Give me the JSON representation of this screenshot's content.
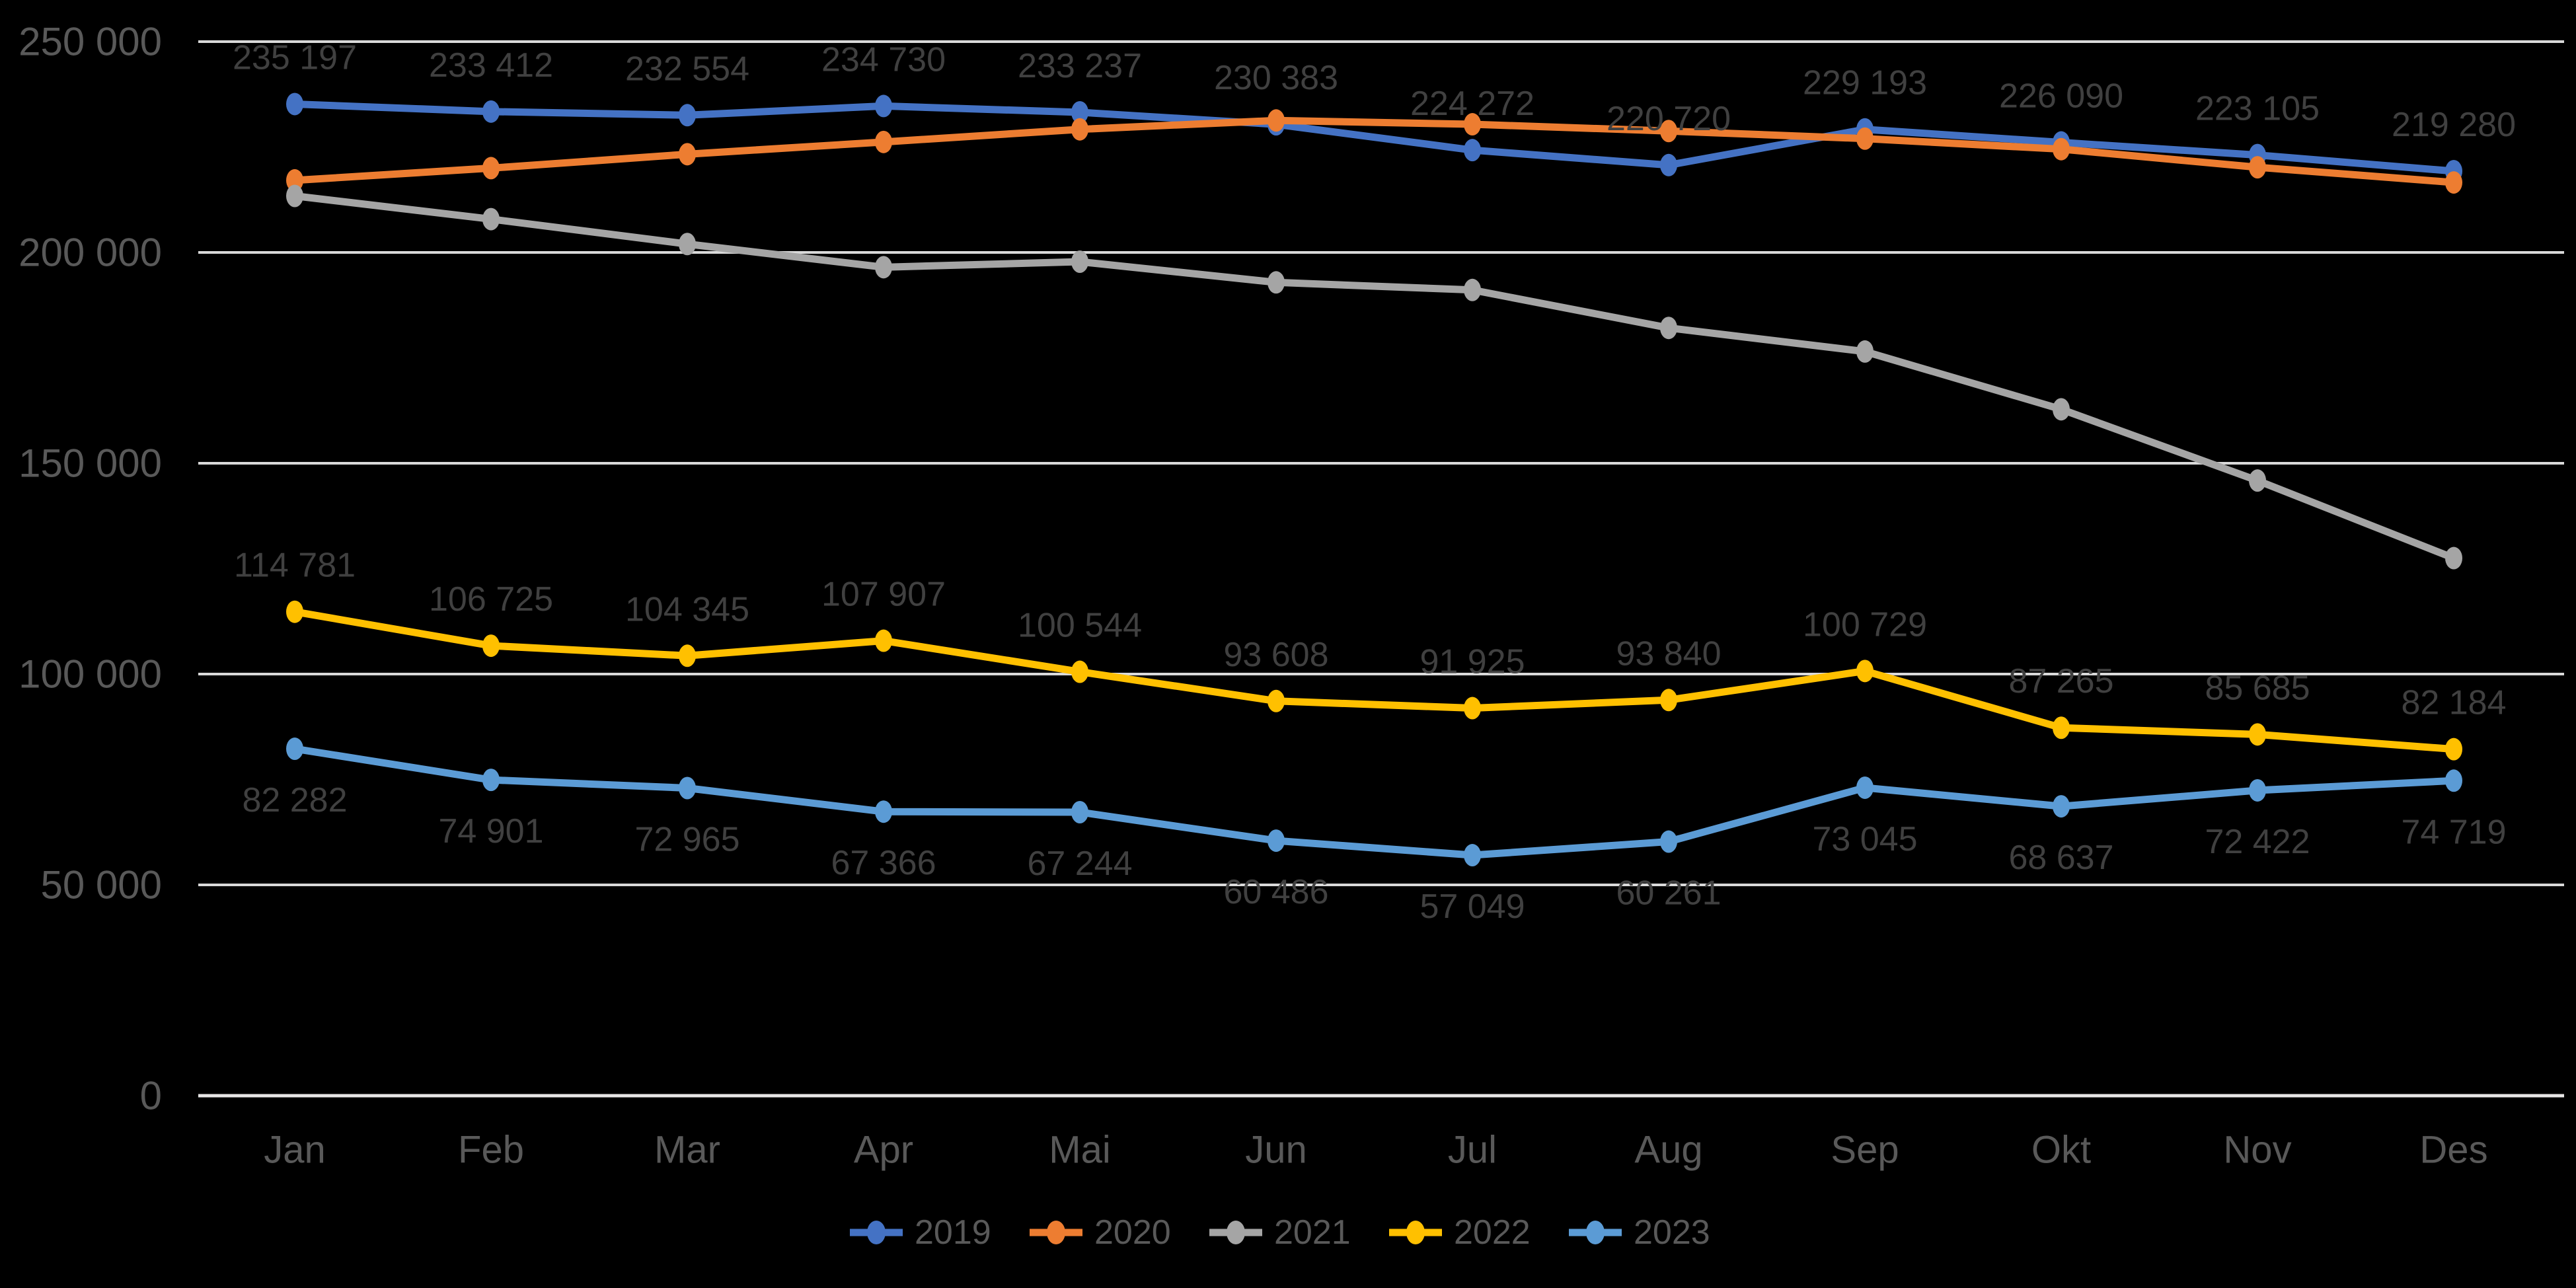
{
  "style": {
    "background_color": "#000000",
    "gridline_color": "#D9D9D9",
    "axisline_color": "#E7E6E6",
    "axis_label_color": "#595959",
    "data_label_color": "#404040",
    "legend_text_color": "#595959"
  },
  "chart_data": {
    "type": "line",
    "title": "",
    "xlabel": "",
    "ylabel": "",
    "grid": true,
    "legend_position": "bottom",
    "categories": [
      "Jan",
      "Feb",
      "Mar",
      "Apr",
      "Mai",
      "Jun",
      "Jul",
      "Aug",
      "Sep",
      "Okt",
      "Nov",
      "Des"
    ],
    "y_axis": {
      "min": 0,
      "max": 250000,
      "step": 50000,
      "tick_labels": [
        "0",
        "50 000",
        "100 000",
        "150 000",
        "200 000",
        "250 000"
      ]
    },
    "series": [
      {
        "name": "2019",
        "color": "#4472C4",
        "values": [
          235197,
          233412,
          232554,
          234730,
          233237,
          230383,
          224272,
          220720,
          229193,
          226090,
          223105,
          219280
        ],
        "labels": [
          "235 197",
          "233 412",
          "232 554",
          "234 730",
          "233 237",
          "230 383",
          "224 272",
          "220 720",
          "229 193",
          "226 090",
          "223 105",
          "219 280"
        ],
        "label_position": "above"
      },
      {
        "name": "2020",
        "color": "#ED7D31",
        "values": [
          217100,
          220000,
          223300,
          226200,
          229200,
          231300,
          230400,
          228800,
          227000,
          224500,
          220200,
          216600
        ],
        "labels": null,
        "label_position": "none"
      },
      {
        "name": "2021",
        "color": "#A5A5A5",
        "values": [
          213400,
          207900,
          202000,
          196500,
          197800,
          192900,
          191100,
          182100,
          176500,
          162800,
          145900,
          127500
        ],
        "labels": null,
        "label_position": "none"
      },
      {
        "name": "2022",
        "color": "#FFC000",
        "values": [
          114781,
          106725,
          104345,
          107907,
          100544,
          93608,
          91925,
          93840,
          100729,
          87265,
          85685,
          82184
        ],
        "labels": [
          "114 781",
          "106 725",
          "104 345",
          "107 907",
          "100 544",
          "93 608",
          "91 925",
          "93 840",
          "100 729",
          "87 265",
          "85 685",
          "82 184"
        ],
        "label_position": "above"
      },
      {
        "name": "2023",
        "color": "#5B9BD5",
        "values": [
          82282,
          74901,
          72965,
          67366,
          67244,
          60486,
          57049,
          60261,
          73045,
          68637,
          72422,
          74719
        ],
        "labels": [
          "82 282",
          "74 901",
          "72 965",
          "67 366",
          "67 244",
          "60 486",
          "57 049",
          "60 261",
          "73 045",
          "68 637",
          "72 422",
          "74 719"
        ],
        "label_position": "below"
      }
    ]
  }
}
